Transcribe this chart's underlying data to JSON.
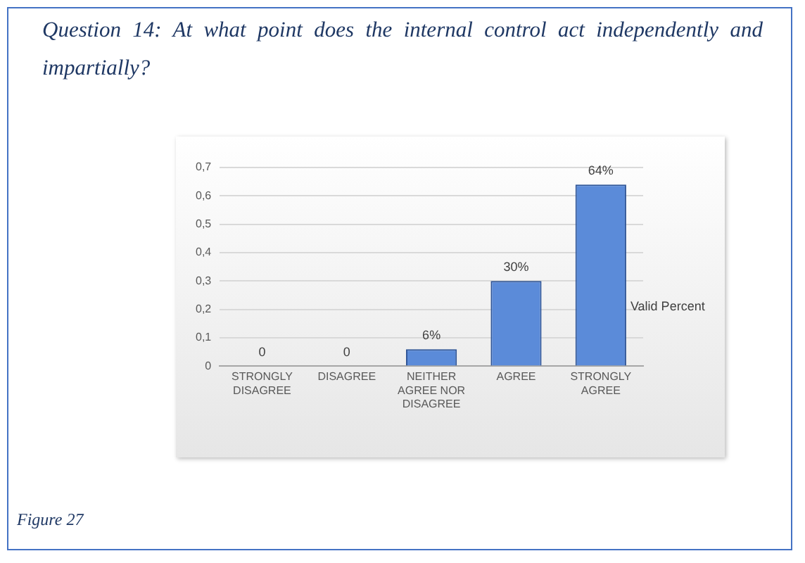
{
  "chart_data": {
    "type": "bar",
    "title": "Question 14: At what point does the internal control act independently and impartially?",
    "categories": [
      "STRONGLY DISAGREE",
      "DISAGREE",
      "NEITHER AGREE NOR DISAGREE",
      "AGREE",
      "STRONGLY AGREE"
    ],
    "series": [
      {
        "name": "Valid Percent",
        "color": "#5b8bd9",
        "values": [
          0,
          0,
          0.06,
          0.3,
          0.64
        ],
        "value_labels": [
          "0",
          "0",
          "6%",
          "30%",
          "64%"
        ]
      }
    ],
    "ylim": [
      0,
      0.7
    ],
    "yticks": [
      {
        "value": 0,
        "label": "0"
      },
      {
        "value": 0.1,
        "label": "0,1"
      },
      {
        "value": 0.2,
        "label": "0,2"
      },
      {
        "value": 0.3,
        "label": "0,3"
      },
      {
        "value": 0.4,
        "label": "0,4"
      },
      {
        "value": 0.5,
        "label": "0,5"
      },
      {
        "value": 0.6,
        "label": "0,6"
      },
      {
        "value": 0.7,
        "label": "0,7"
      }
    ],
    "grid": "y",
    "legend": false,
    "annotations": [
      "Figure 27"
    ]
  }
}
